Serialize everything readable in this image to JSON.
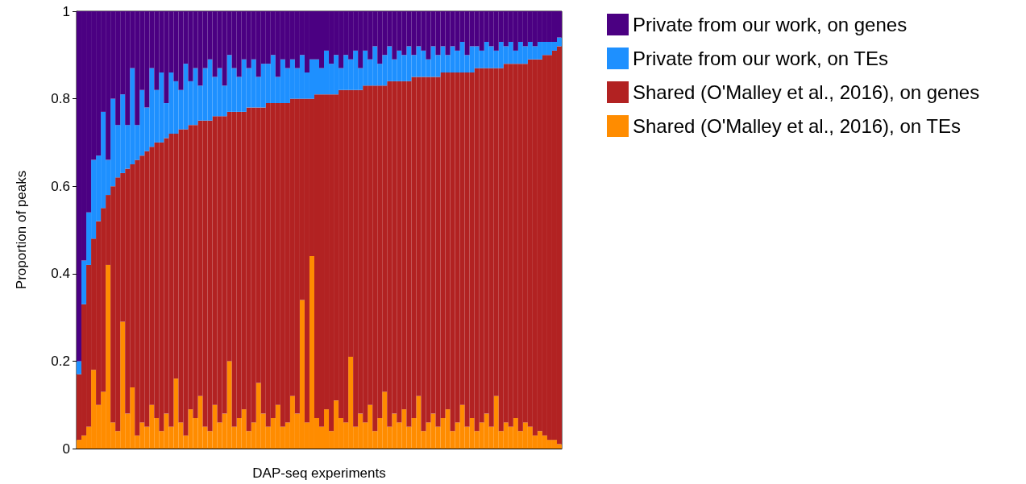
{
  "chart_data": {
    "type": "bar",
    "stacked": true,
    "xlabel": "DAP-seq experiments",
    "ylabel": "Proportion of peaks",
    "ylim": [
      0,
      1
    ],
    "yticks": [
      0,
      0.2,
      0.4,
      0.6,
      0.8,
      1
    ],
    "grid": false,
    "legend": "right",
    "categories": [
      null,
      null,
      null,
      null,
      null,
      null,
      null,
      null,
      null,
      null,
      null,
      null,
      null,
      null,
      null,
      null,
      null,
      null,
      null,
      null,
      null,
      null,
      null,
      null,
      null,
      null,
      null,
      null,
      null,
      null,
      null,
      null,
      null,
      null,
      null,
      null,
      null,
      null,
      null,
      null,
      null,
      null,
      null,
      null,
      null,
      null,
      null,
      null,
      null,
      null,
      null,
      null,
      null,
      null,
      null,
      null,
      null,
      null,
      null,
      null,
      null,
      null,
      null,
      null,
      null,
      null,
      null,
      null,
      null,
      null,
      null,
      null,
      null,
      null,
      null,
      null,
      null,
      null,
      null,
      null,
      null,
      null,
      null,
      null,
      null,
      null,
      null,
      null,
      null,
      null,
      null,
      null,
      null,
      null,
      null,
      null,
      null,
      null,
      null,
      null
    ],
    "series": [
      {
        "name": "Shared (O'Malley et al., 2016), on TEs",
        "color": "#ff8c00",
        "values": [
          0.02,
          0.03,
          0.05,
          0.18,
          0.1,
          0.13,
          0.42,
          0.06,
          0.04,
          0.29,
          0.08,
          0.14,
          0.03,
          0.06,
          0.05,
          0.1,
          0.07,
          0.04,
          0.08,
          0.05,
          0.16,
          0.06,
          0.03,
          0.09,
          0.07,
          0.12,
          0.05,
          0.04,
          0.1,
          0.06,
          0.08,
          0.2,
          0.05,
          0.07,
          0.09,
          0.04,
          0.06,
          0.15,
          0.08,
          0.05,
          0.07,
          0.1,
          0.05,
          0.06,
          0.12,
          0.08,
          0.34,
          0.06,
          0.44,
          0.07,
          0.05,
          0.09,
          0.04,
          0.11,
          0.07,
          0.06,
          0.21,
          0.05,
          0.08,
          0.06,
          0.1,
          0.04,
          0.07,
          0.13,
          0.05,
          0.08,
          0.06,
          0.09,
          0.05,
          0.07,
          0.12,
          0.04,
          0.06,
          0.08,
          0.05,
          0.07,
          0.09,
          0.04,
          0.06,
          0.1,
          0.05,
          0.07,
          0.04,
          0.06,
          0.08,
          0.05,
          0.12,
          0.04,
          0.06,
          0.05,
          0.07,
          0.04,
          0.06,
          0.05,
          0.03,
          0.04,
          0.03,
          0.02,
          0.02,
          0.01
        ]
      },
      {
        "name": "Shared (O'Malley et al., 2016), on genes",
        "color": "#b22222",
        "values": [
          0.15,
          0.3,
          0.37,
          0.3,
          0.42,
          0.42,
          0.16,
          0.54,
          0.58,
          0.34,
          0.56,
          0.51,
          0.63,
          0.61,
          0.63,
          0.59,
          0.63,
          0.66,
          0.63,
          0.67,
          0.56,
          0.67,
          0.7,
          0.65,
          0.67,
          0.63,
          0.7,
          0.71,
          0.66,
          0.7,
          0.68,
          0.57,
          0.72,
          0.7,
          0.68,
          0.74,
          0.72,
          0.63,
          0.7,
          0.74,
          0.72,
          0.69,
          0.74,
          0.73,
          0.68,
          0.72,
          0.46,
          0.74,
          0.36,
          0.74,
          0.76,
          0.72,
          0.77,
          0.7,
          0.75,
          0.76,
          0.61,
          0.77,
          0.74,
          0.77,
          0.73,
          0.79,
          0.76,
          0.7,
          0.79,
          0.76,
          0.78,
          0.75,
          0.79,
          0.78,
          0.73,
          0.81,
          0.79,
          0.77,
          0.8,
          0.79,
          0.77,
          0.82,
          0.8,
          0.76,
          0.81,
          0.79,
          0.83,
          0.81,
          0.79,
          0.82,
          0.75,
          0.83,
          0.82,
          0.83,
          0.81,
          0.84,
          0.82,
          0.84,
          0.86,
          0.85,
          0.87,
          0.88,
          0.89,
          0.91
        ]
      },
      {
        "name": "Private from our work, on TEs",
        "color": "#1e90ff",
        "values": [
          0.03,
          0.1,
          0.12,
          0.18,
          0.15,
          0.22,
          0.08,
          0.2,
          0.12,
          0.18,
          0.1,
          0.22,
          0.08,
          0.15,
          0.1,
          0.18,
          0.12,
          0.16,
          0.08,
          0.14,
          0.12,
          0.09,
          0.15,
          0.1,
          0.13,
          0.08,
          0.12,
          0.14,
          0.09,
          0.11,
          0.07,
          0.13,
          0.1,
          0.08,
          0.12,
          0.09,
          0.11,
          0.07,
          0.1,
          0.09,
          0.11,
          0.06,
          0.1,
          0.08,
          0.09,
          0.07,
          0.1,
          0.06,
          0.09,
          0.08,
          0.06,
          0.1,
          0.07,
          0.09,
          0.05,
          0.08,
          0.07,
          0.09,
          0.05,
          0.08,
          0.06,
          0.09,
          0.05,
          0.07,
          0.08,
          0.05,
          0.07,
          0.06,
          0.08,
          0.05,
          0.07,
          0.06,
          0.04,
          0.07,
          0.05,
          0.06,
          0.04,
          0.06,
          0.05,
          0.07,
          0.04,
          0.06,
          0.05,
          0.04,
          0.06,
          0.05,
          0.04,
          0.06,
          0.04,
          0.05,
          0.03,
          0.05,
          0.04,
          0.04,
          0.03,
          0.04,
          0.03,
          0.03,
          0.02,
          0.02
        ]
      },
      {
        "name": "Private from our work, on genes",
        "color": "#4b0082",
        "values": [
          0.8,
          0.57,
          0.46,
          0.34,
          0.33,
          0.23,
          0.34,
          0.2,
          0.26,
          0.19,
          0.26,
          0.13,
          0.26,
          0.18,
          0.22,
          0.13,
          0.18,
          0.14,
          0.21,
          0.14,
          0.16,
          0.18,
          0.12,
          0.16,
          0.13,
          0.17,
          0.13,
          0.11,
          0.15,
          0.13,
          0.17,
          0.1,
          0.13,
          0.15,
          0.11,
          0.13,
          0.11,
          0.15,
          0.12,
          0.12,
          0.1,
          0.15,
          0.11,
          0.13,
          0.11,
          0.13,
          0.1,
          0.14,
          0.11,
          0.11,
          0.13,
          0.09,
          0.12,
          0.1,
          0.13,
          0.1,
          0.11,
          0.09,
          0.13,
          0.09,
          0.11,
          0.08,
          0.12,
          0.1,
          0.08,
          0.11,
          0.09,
          0.1,
          0.08,
          0.1,
          0.08,
          0.09,
          0.11,
          0.08,
          0.1,
          0.08,
          0.1,
          0.08,
          0.09,
          0.07,
          0.1,
          0.08,
          0.08,
          0.09,
          0.07,
          0.08,
          0.09,
          0.07,
          0.08,
          0.07,
          0.09,
          0.07,
          0.08,
          0.07,
          0.08,
          0.07,
          0.07,
          0.07,
          0.07,
          0.06
        ]
      }
    ]
  }
}
